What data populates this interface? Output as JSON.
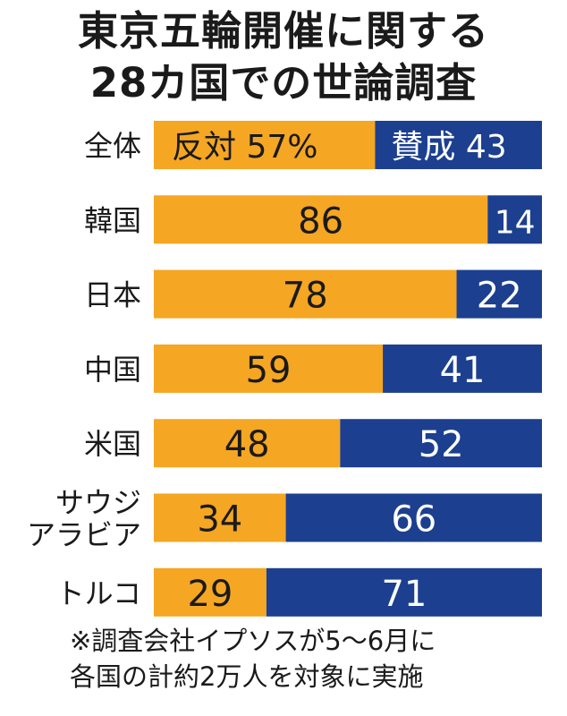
{
  "title": {
    "line1": "東京五輪開催に関する",
    "line2": "28カ国での世論調査"
  },
  "colors": {
    "oppose": "#f5a623",
    "support": "#1c3f8f",
    "text_dark": "#1a1a1a",
    "text_light": "#ffffff"
  },
  "chart_data": {
    "type": "bar",
    "stacked": true,
    "orientation": "horizontal",
    "categories": [
      "全体",
      "韓国",
      "日本",
      "中国",
      "米国",
      "サウジアラビア",
      "トルコ"
    ],
    "category_lines": [
      [
        "全体"
      ],
      [
        "韓国"
      ],
      [
        "日本"
      ],
      [
        "中国"
      ],
      [
        "米国"
      ],
      [
        "サウジ",
        "アラビア"
      ],
      [
        "トルコ"
      ]
    ],
    "series": [
      {
        "name": "反対",
        "color": "#f5a623",
        "values": [
          57,
          86,
          78,
          59,
          48,
          34,
          29
        ]
      },
      {
        "name": "賛成",
        "color": "#1c3f8f",
        "values": [
          43,
          14,
          22,
          41,
          52,
          66,
          71
        ]
      }
    ],
    "first_row_labels": {
      "oppose": "反対 57%",
      "support": "賛成 43"
    },
    "xlim": [
      0,
      100
    ],
    "unit": "%"
  },
  "footnote": {
    "line1": "※調査会社イプソスが5〜6月に",
    "line2": "各国の計約2万人を対象に実施"
  }
}
